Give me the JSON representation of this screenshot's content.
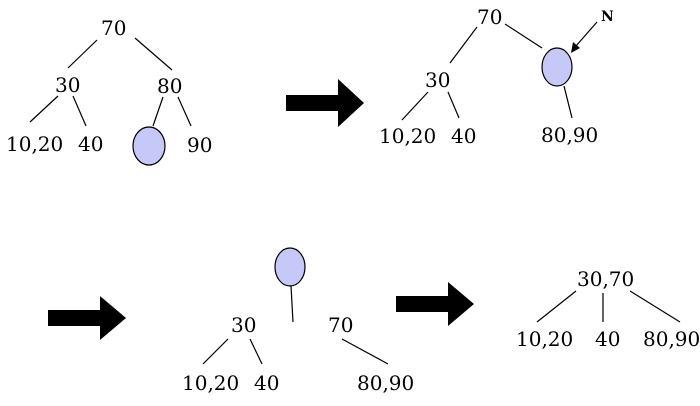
{
  "panel1": {
    "root": "70",
    "left": "30",
    "right": "80",
    "leaf1": "10,20",
    "leaf2": "40",
    "leaf4": "90"
  },
  "panel2": {
    "root": "70",
    "left": "30",
    "leaf1": "10,20",
    "leaf2": "40",
    "leaf3": "80,90",
    "pointer_label": "N"
  },
  "panel3": {
    "left": "30",
    "right": "70",
    "leaf1": "10,20",
    "leaf2": "40",
    "leaf3": "80,90"
  },
  "panel4": {
    "root": "30,70",
    "leaf1": "10,20",
    "leaf2": "40",
    "leaf3": "80,90"
  },
  "colors": {
    "empty_node_fill": "#c6c9f7",
    "stroke": "#000000"
  }
}
